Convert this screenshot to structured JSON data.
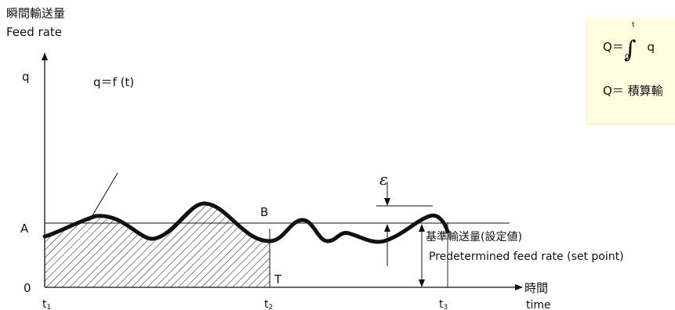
{
  "axis": {
    "y_title_jp": "瞬間輸送量",
    "y_title_en": "Feed rate",
    "y_symbol": "q",
    "x_title_jp": "時間",
    "x_title_en": "time",
    "origin": "0",
    "level_a": "A",
    "ticks": {
      "t1_main": "t",
      "t1_sub": "1",
      "t2_main": "t",
      "t2_sub": "2",
      "t3_main": "t",
      "t3_sub": "3"
    }
  },
  "labels": {
    "curve": "q＝f (t)",
    "point_b": "B",
    "point_t": "T",
    "epsilon": "ε",
    "setpoint_jp": "基準輸送量(設定値)",
    "setpoint_en": "Predetermined feed rate (set point)"
  },
  "formula": {
    "line1_prefix": "Q＝",
    "upper_limit": "t",
    "lower_limit": "0",
    "line1_suffix": "q",
    "line2": "Q＝ 積算輸"
  }
}
